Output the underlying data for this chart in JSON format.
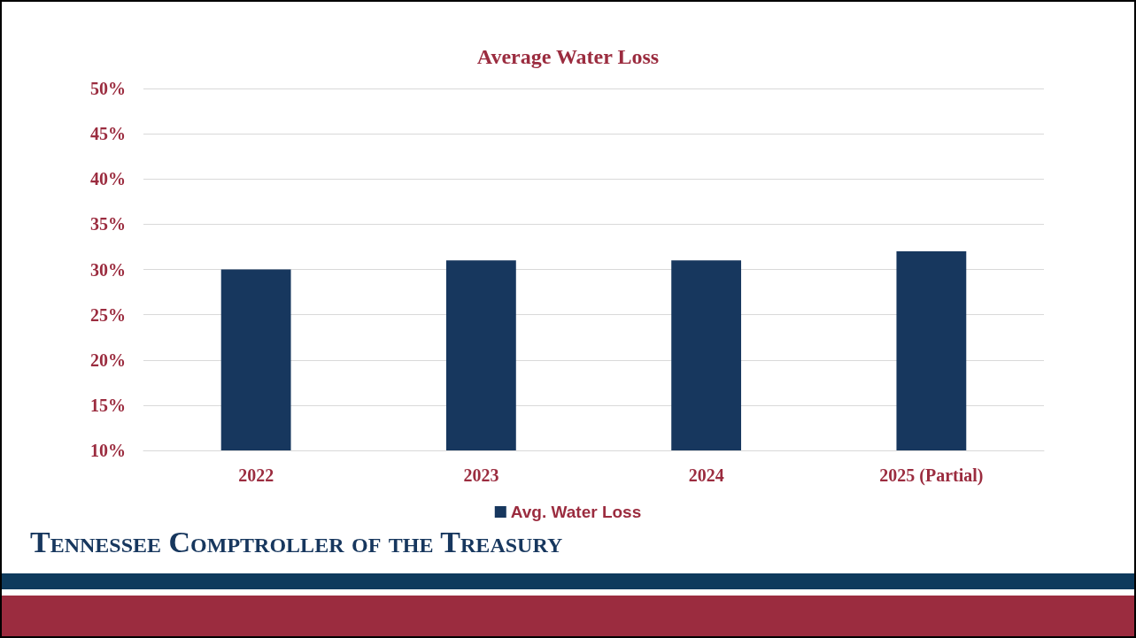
{
  "chart_data": {
    "type": "bar",
    "title": "Average Water Loss",
    "categories": [
      "2022",
      "2023",
      "2024",
      "2025 (Partial)"
    ],
    "series": [
      {
        "name": "Avg. Water Loss",
        "color": "#17375e",
        "values": [
          30,
          31,
          31,
          32
        ]
      }
    ],
    "ylim": [
      10,
      50
    ],
    "yticks": [
      {
        "value": 10,
        "label": "10%"
      },
      {
        "value": 15,
        "label": "15%"
      },
      {
        "value": 20,
        "label": "20%"
      },
      {
        "value": 25,
        "label": "25%"
      },
      {
        "value": 30,
        "label": "30%"
      },
      {
        "value": 35,
        "label": "35%"
      },
      {
        "value": 40,
        "label": "40%"
      },
      {
        "value": 45,
        "label": "45%"
      },
      {
        "value": 50,
        "label": "50%"
      }
    ],
    "grid": "y",
    "legend": "bottom",
    "annotations": [
      "Tennessee Comptroller of the Treasury"
    ]
  }
}
